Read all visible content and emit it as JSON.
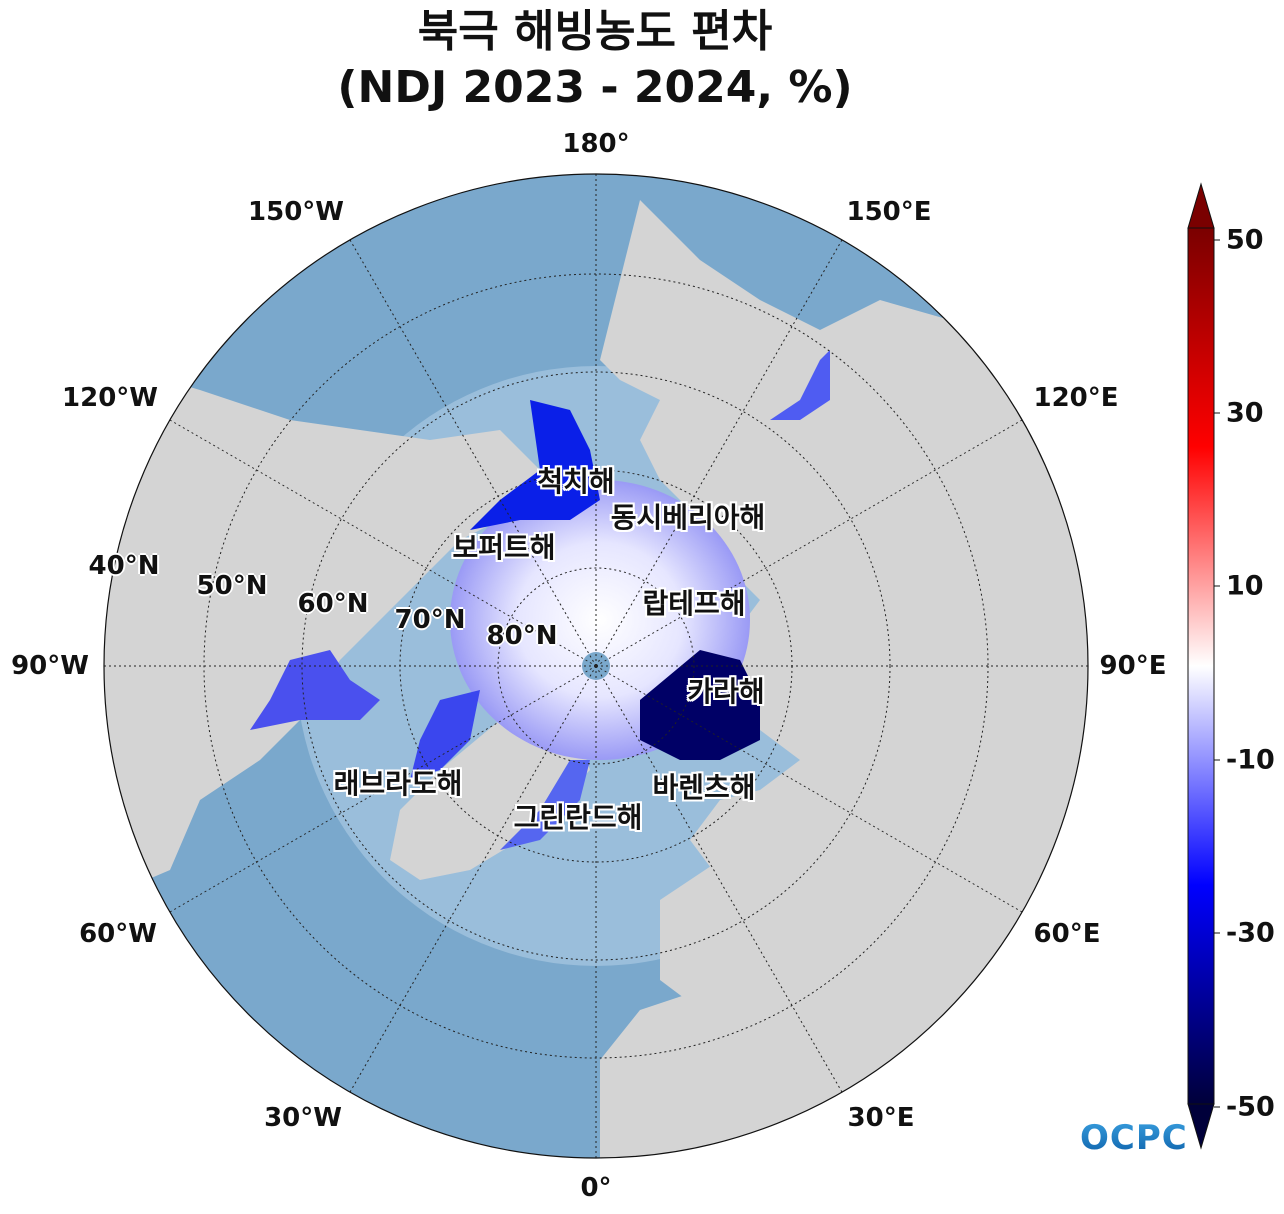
{
  "title": {
    "line1": "북극 해빙농도 편차",
    "line2": "(NDJ 2023 - 2024, %)"
  },
  "map": {
    "projection": "north-polar-stereographic",
    "longitude_labels": [
      "180°",
      "150°E",
      "120°E",
      "90°E",
      "60°E",
      "30°E",
      "0°",
      "30°W",
      "60°W",
      "90°W",
      "120°W",
      "150°W"
    ],
    "latitude_labels": [
      "40°N",
      "50°N",
      "60°N",
      "70°N",
      "80°N"
    ],
    "colors": {
      "ocean": "#7aa8cc",
      "land": "#d4d4d4",
      "pole": "#7aa8cc"
    }
  },
  "seas": [
    "척치해",
    "동시베리아해",
    "보퍼트해",
    "랍테프해",
    "카라해",
    "래브라도해",
    "바렌츠해",
    "그린란드해"
  ],
  "colorbar": {
    "ticks": [
      "50",
      "30",
      "10",
      "-10",
      "-30",
      "-50"
    ],
    "range": [
      -50,
      50
    ],
    "colors": [
      "#00003a",
      "#0000ff",
      "#ffffff",
      "#ff0000",
      "#7a0000"
    ],
    "extend": "both"
  },
  "logo": "OCPC"
}
